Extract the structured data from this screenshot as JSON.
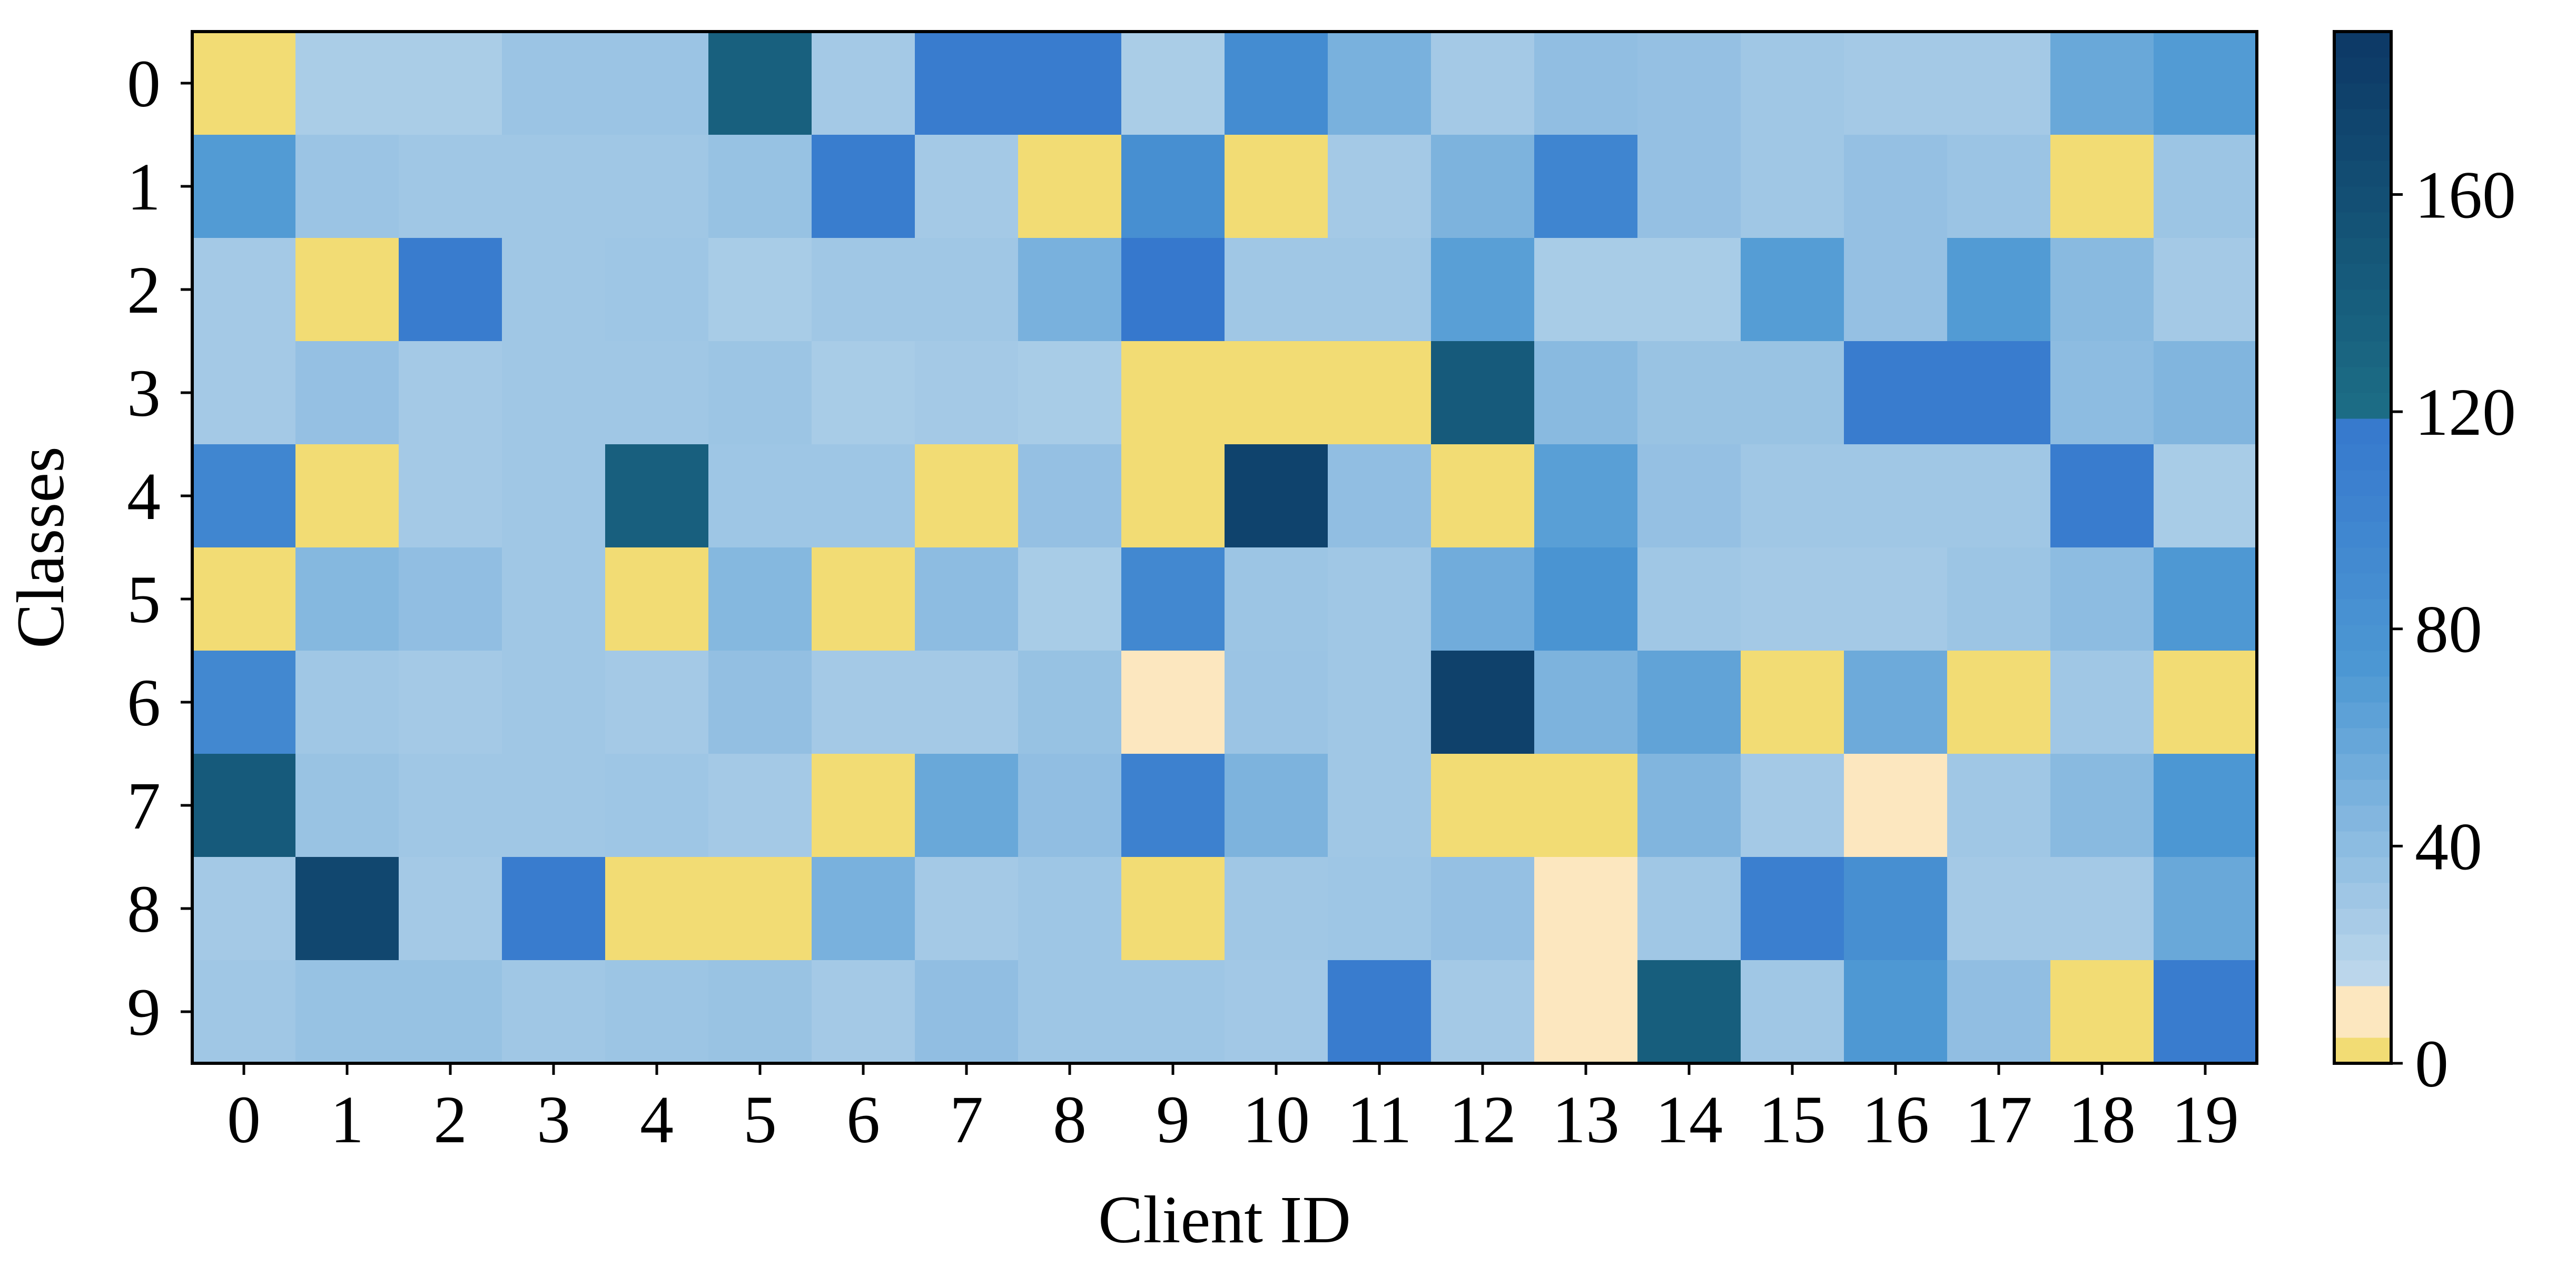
{
  "chart_data": {
    "type": "heatmap",
    "xlabel": "Client ID",
    "ylabel": "Classes",
    "x_categories": [
      "0",
      "1",
      "2",
      "3",
      "4",
      "5",
      "6",
      "7",
      "8",
      "9",
      "10",
      "11",
      "12",
      "13",
      "14",
      "15",
      "16",
      "17",
      "18",
      "19"
    ],
    "y_categories": [
      "0",
      "1",
      "2",
      "3",
      "4",
      "5",
      "6",
      "7",
      "8",
      "9"
    ],
    "values": [
      [
        0,
        25,
        25,
        33,
        33,
        137,
        28,
        113,
        113,
        25,
        90,
        50,
        28,
        38,
        36,
        30,
        28,
        28,
        58,
        70
      ],
      [
        70,
        33,
        30,
        30,
        30,
        35,
        112,
        28,
        0,
        85,
        0,
        28,
        48,
        100,
        36,
        30,
        36,
        33,
        0,
        32
      ],
      [
        28,
        0,
        113,
        30,
        31,
        26,
        30,
        30,
        50,
        118,
        30,
        30,
        66,
        26,
        26,
        68,
        36,
        70,
        42,
        28
      ],
      [
        28,
        36,
        28,
        30,
        30,
        32,
        26,
        28,
        26,
        0,
        0,
        0,
        145,
        42,
        34,
        34,
        113,
        113,
        40,
        46
      ],
      [
        98,
        0,
        28,
        30,
        138,
        31,
        31,
        0,
        36,
        0,
        175,
        38,
        0,
        66,
        36,
        30,
        30,
        30,
        113,
        26
      ],
      [
        0,
        44,
        38,
        30,
        0,
        44,
        0,
        40,
        26,
        95,
        32,
        30,
        54,
        78,
        30,
        28,
        28,
        32,
        40,
        72
      ],
      [
        95,
        30,
        28,
        30,
        28,
        37,
        28,
        28,
        35,
        8,
        33,
        30,
        178,
        48,
        62,
        0,
        56,
        0,
        30,
        0
      ],
      [
        145,
        34,
        30,
        30,
        31,
        28,
        0,
        58,
        38,
        105,
        48,
        30,
        0,
        0,
        46,
        28,
        8,
        30,
        42,
        74
      ],
      [
        28,
        170,
        28,
        113,
        0,
        0,
        50,
        28,
        31,
        0,
        30,
        31,
        36,
        8,
        30,
        108,
        85,
        28,
        28,
        58
      ],
      [
        30,
        35,
        35,
        30,
        32,
        34,
        28,
        38,
        31,
        31,
        29,
        113,
        28,
        8,
        140,
        30,
        72,
        38,
        0,
        113
      ]
    ],
    "colorbar": {
      "ticks": [
        "0",
        "40",
        "80",
        "120",
        "160"
      ],
      "range": [
        0,
        190
      ]
    },
    "colors": {
      "yellow": "#f2dc74",
      "cream": "#fce7bf",
      "light_blue": "#c0d9ec",
      "mid_blue": "#4d98d3",
      "bright_blue": "#3577cd",
      "teal": "#1c6d86",
      "navy": "#0c3866"
    }
  }
}
